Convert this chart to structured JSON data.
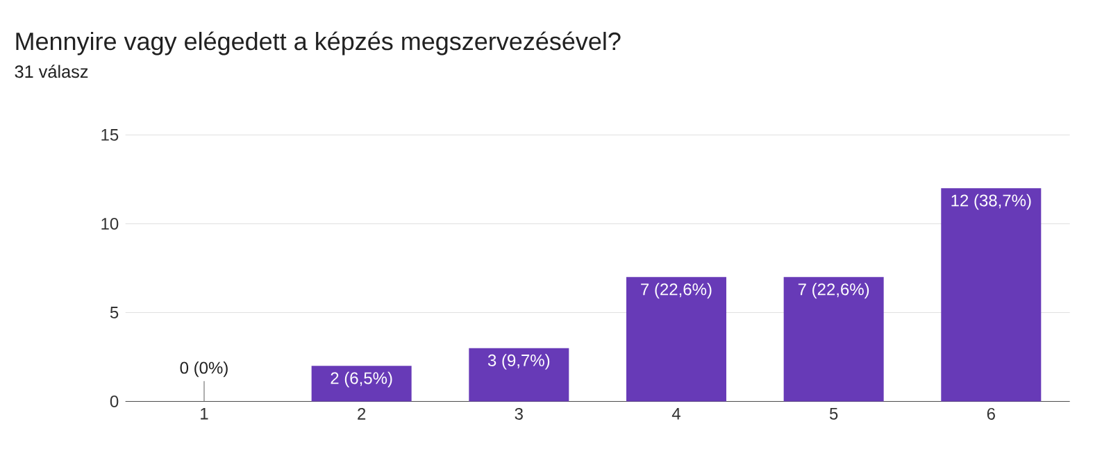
{
  "chart_data": {
    "type": "bar",
    "title": "Mennyire vagy elégedett a képzés megszervezésével?",
    "subtitle": "31 válasz",
    "categories": [
      "1",
      "2",
      "3",
      "4",
      "5",
      "6"
    ],
    "values": [
      0,
      2,
      3,
      7,
      7,
      12
    ],
    "value_labels": [
      "0 (0%)",
      "2 (6,5%)",
      "3 (9,7%)",
      "7 (22,6%)",
      "7 (22,6%)",
      "12 (38,7%)"
    ],
    "color": "#673ab7",
    "ylim": [
      0,
      15
    ],
    "yticks": [
      0,
      5,
      10,
      15
    ],
    "grid": "y"
  }
}
